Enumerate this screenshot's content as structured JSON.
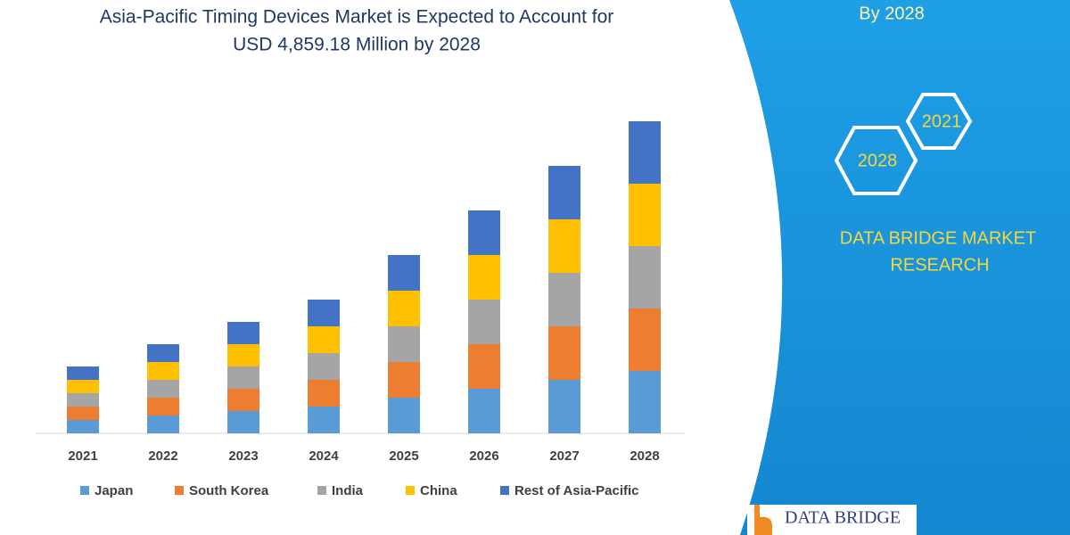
{
  "chart_data": {
    "type": "stacked_bar",
    "title": [
      "Asia-Pacific Timing Devices Market is Expected to Account for",
      "USD 4,859.18 Million  by 2028"
    ],
    "categories": [
      "2021",
      "2022",
      "2023",
      "2024",
      "2025",
      "2026",
      "2027",
      "2028"
    ],
    "series": [
      {
        "name": "Japan",
        "color": "#5b9bd5",
        "values": [
          15,
          20,
          25,
          30,
          40,
          50,
          60,
          70
        ]
      },
      {
        "name": "South Korea",
        "color": "#ed7d31",
        "values": [
          15,
          20,
          25,
          30,
          40,
          50,
          60,
          70
        ]
      },
      {
        "name": "India",
        "color": "#a5a5a5",
        "values": [
          15,
          20,
          25,
          30,
          40,
          50,
          60,
          70
        ]
      },
      {
        "name": "China",
        "color": "#ffc000",
        "values": [
          15,
          20,
          25,
          30,
          40,
          50,
          60,
          70
        ]
      },
      {
        "name": "Rest of Asia-Pacific",
        "color": "#4472c4",
        "values": [
          15,
          20,
          25,
          30,
          40,
          50,
          60,
          70
        ]
      }
    ],
    "ylim": [
      0,
      360
    ],
    "legend": "bottom"
  },
  "panel": {
    "tagline": "By 2028",
    "hexagons": [
      "2021",
      "2028"
    ],
    "company": [
      "DATA BRIDGE MARKET",
      "RESEARCH"
    ],
    "logo": "DATA BRIDGE"
  }
}
